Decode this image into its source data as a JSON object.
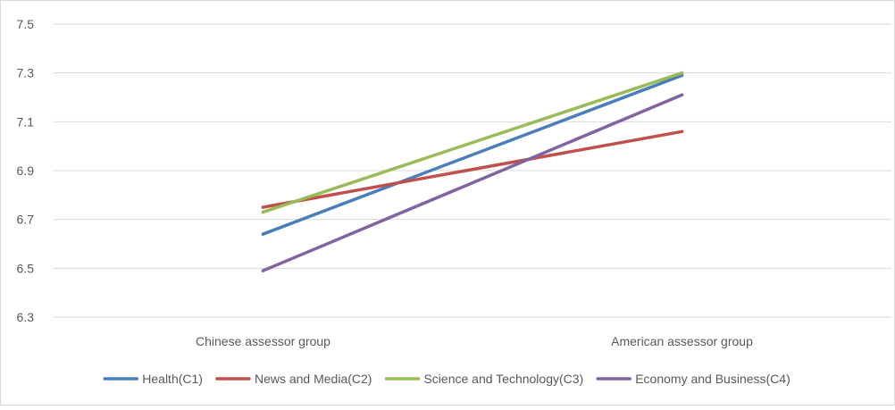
{
  "chart_data": {
    "type": "line",
    "categories": [
      "Chinese assessor group",
      "American assessor group"
    ],
    "ylim": [
      6.3,
      7.5
    ],
    "yticks": [
      "6.3",
      "6.5",
      "6.7",
      "6.9",
      "7.1",
      "7.3",
      "7.5"
    ],
    "grid": true,
    "legend_position": "bottom",
    "title": "",
    "xlabel": "",
    "ylabel": "",
    "series": [
      {
        "name": "Health(C1)",
        "color": "#4a7ebb",
        "values": [
          6.64,
          7.29
        ]
      },
      {
        "name": "News and Media(C2)",
        "color": "#c0504d",
        "values": [
          6.75,
          7.06
        ]
      },
      {
        "name": "Science and Technology(C3)",
        "color": "#9bbb59",
        "values": [
          6.73,
          7.3
        ]
      },
      {
        "name": "Economy and Business(C4)",
        "color": "#8064a2",
        "values": [
          6.49,
          7.21
        ]
      }
    ]
  }
}
